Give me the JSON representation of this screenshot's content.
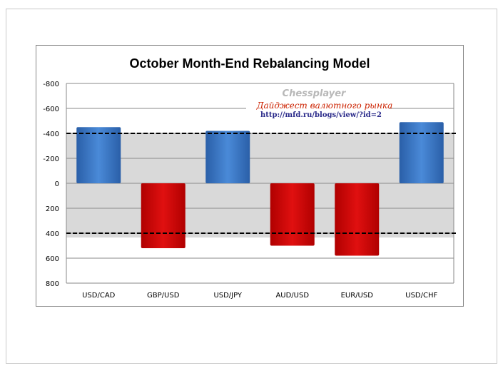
{
  "chart_data": {
    "type": "bar",
    "title": "October Month-End Rebalancing Model",
    "categories": [
      "USD/CAD",
      "GBP/USD",
      "USD/JPY",
      "AUD/USD",
      "EUR/USD",
      "USD/CHF"
    ],
    "values": [
      -450,
      520,
      -420,
      500,
      580,
      -490
    ],
    "ylim": [
      -800,
      800
    ],
    "y_reversed": true,
    "yticks": [
      -800,
      -600,
      -400,
      -200,
      0,
      200,
      400,
      600,
      800
    ],
    "ytick_labels": [
      "-800",
      "-600",
      "-400",
      "-200",
      "0",
      "200",
      "400",
      "600",
      "800"
    ],
    "thresholds": [
      -400,
      400
    ],
    "band": [
      -400,
      400
    ],
    "grid": true,
    "legend": "none",
    "colors": {
      "negative": "#3a78c8",
      "positive": "#d40a0a",
      "band": "#d9d9d9"
    }
  },
  "watermark": {
    "name": "Chessplayer",
    "subtitle": "Дайджест валютного рынка",
    "url": "http://mfd.ru/blogs/view/?id=2"
  }
}
